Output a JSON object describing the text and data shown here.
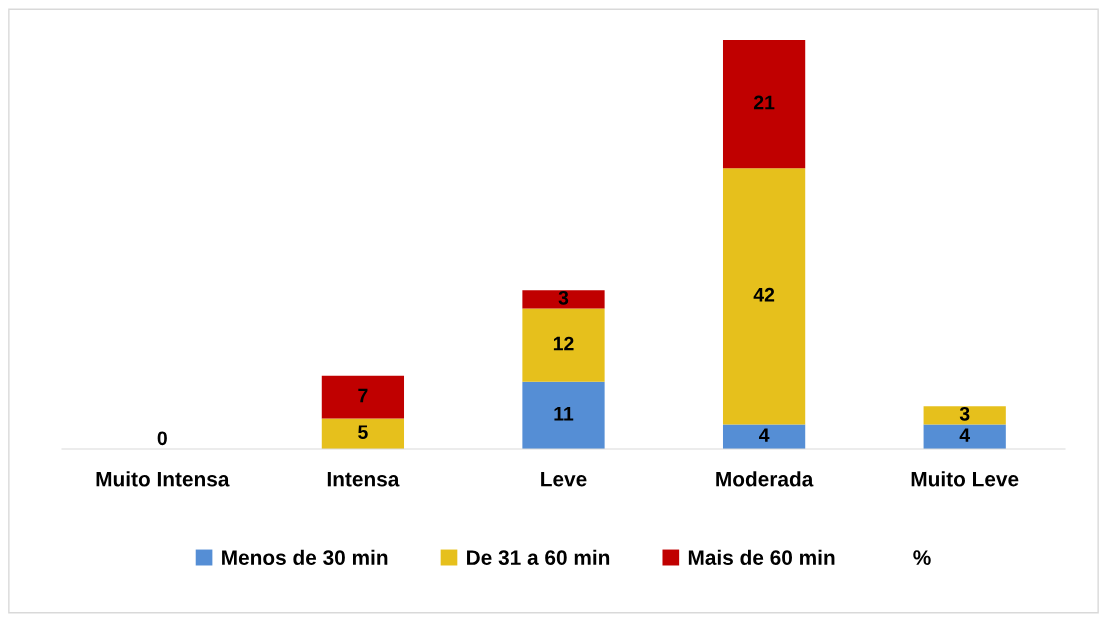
{
  "chart_data": {
    "type": "bar",
    "stacked": true,
    "data_labels": true,
    "legend": "bottom",
    "categories": [
      "Muito Intensa",
      "Intensa",
      "Leve",
      "Moderada",
      "Muito Leve"
    ],
    "series": [
      {
        "name": "Menos de 30 min",
        "color": "#558ed5",
        "values": [
          0,
          null,
          11,
          4,
          4
        ]
      },
      {
        "name": "De 31 a 60 min",
        "color": "#e6c01c",
        "values": [
          null,
          5,
          12,
          42,
          3
        ]
      },
      {
        "name": "Mais de 60 min",
        "color": "#c00000",
        "values": [
          null,
          7,
          3,
          21,
          null
        ]
      },
      {
        "name": "%",
        "values": [
          null,
          null,
          null,
          null,
          null
        ]
      }
    ]
  }
}
